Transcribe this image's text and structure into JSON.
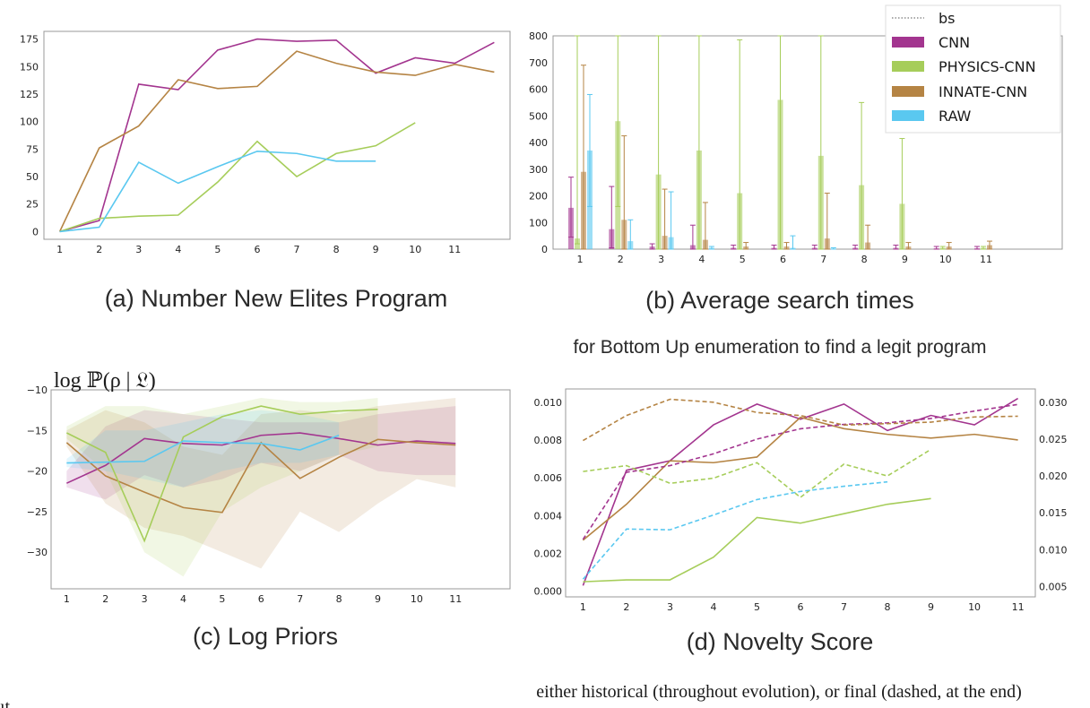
{
  "colors": {
    "CNN": "#a3358f",
    "PHYSICS-CNN": "#a6cd5a",
    "INNATE-CNN": "#b58444",
    "RAW": "#5ac8f0"
  },
  "captions": {
    "a": "(a) Number New Elites Program",
    "b": "(b) Average search times",
    "b_note": "for Bottom Up enumeration to find a legit program",
    "c": "(c) Log Priors",
    "c_ylabel": "log ℙ(ρ | 𝔏)",
    "d": "(d) Novelty Score",
    "d_note": "either historical (throughout evolution), or final (dashed, at the end)",
    "edge_fragment": "ıt"
  },
  "legend": [
    {
      "label": "bs",
      "style": "dotted"
    },
    {
      "label": "CNN",
      "style": "patch",
      "color": "#a3358f"
    },
    {
      "label": "PHYSICS-CNN",
      "style": "patch",
      "color": "#a6cd5a"
    },
    {
      "label": "INNATE-CNN",
      "style": "patch",
      "color": "#b58444"
    },
    {
      "label": "RAW",
      "style": "patch",
      "color": "#5ac8f0"
    }
  ],
  "chart_data": [
    {
      "id": "a",
      "type": "line",
      "title": "(a) Number New Elites Program",
      "x_ticks": [
        "1",
        "2",
        "3",
        "4",
        "5",
        "6",
        "7",
        "8",
        "9",
        "10",
        "11"
      ],
      "xlim": [
        0.6,
        12.4
      ],
      "y_ticks": [
        "0",
        "25",
        "50",
        "75",
        "100",
        "125",
        "150",
        "175"
      ],
      "ylim": [
        -7,
        182
      ],
      "series": [
        {
          "name": "CNN",
          "x": [
            1,
            2,
            3,
            4,
            5,
            6,
            7,
            8,
            9,
            10,
            11,
            12
          ],
          "values": [
            0,
            10,
            134,
            129,
            165,
            175,
            173,
            174,
            144,
            158,
            153,
            172
          ]
        },
        {
          "name": "INNATE-CNN",
          "x": [
            1,
            2,
            3,
            4,
            5,
            6,
            7,
            8,
            9,
            10,
            11,
            12
          ],
          "values": [
            0,
            76,
            96,
            138,
            130,
            132,
            164,
            153,
            145,
            142,
            152,
            145
          ]
        },
        {
          "name": "PHYSICS-CNN",
          "x": [
            1,
            2,
            3,
            4,
            5,
            6,
            7,
            8,
            9,
            10
          ],
          "values": [
            0,
            12,
            14,
            15,
            45,
            82,
            50,
            71,
            78,
            99
          ]
        },
        {
          "name": "RAW",
          "x": [
            1,
            2,
            3,
            4,
            5,
            6,
            7,
            8,
            9
          ],
          "values": [
            0,
            4,
            63,
            44,
            59,
            73,
            71,
            64,
            64
          ]
        }
      ]
    },
    {
      "id": "b",
      "type": "bar",
      "title": "(b) Average search times",
      "subtitle": "for Bottom Up enumeration to find a legit program",
      "categories": [
        "1",
        "2",
        "3",
        "4",
        "5",
        "6",
        "7",
        "8",
        "9",
        "10",
        "11"
      ],
      "y_ticks": [
        "0",
        "100",
        "200",
        "300",
        "400",
        "500",
        "600",
        "700",
        "800"
      ],
      "ylim": [
        0,
        800
      ],
      "series": [
        {
          "name": "CNN",
          "values": [
            155,
            75,
            10,
            15,
            5,
            5,
            5,
            5,
            5,
            3,
            3
          ],
          "err_hi": [
            270,
            235,
            20,
            90,
            15,
            15,
            15,
            15,
            15,
            10,
            10
          ],
          "err_lo": [
            45,
            5,
            0,
            0,
            0,
            0,
            0,
            0,
            0,
            0,
            0
          ]
        },
        {
          "name": "PHYSICS-CNN",
          "values": [
            40,
            480,
            280,
            370,
            210,
            560,
            350,
            240,
            170,
            5,
            5
          ],
          "err_hi": [
            800,
            800,
            800,
            800,
            785,
            800,
            800,
            550,
            415,
            10,
            10
          ],
          "err_lo": [
            20,
            160,
            0,
            0,
            0,
            0,
            0,
            0,
            0,
            0,
            0
          ]
        },
        {
          "name": "INNATE-CNN",
          "values": [
            290,
            110,
            50,
            35,
            10,
            10,
            40,
            25,
            10,
            10,
            15
          ],
          "err_hi": [
            690,
            425,
            225,
            175,
            25,
            25,
            210,
            90,
            25,
            25,
            30
          ],
          "err_lo": [
            0,
            0,
            0,
            0,
            0,
            0,
            0,
            0,
            0,
            0,
            0
          ]
        },
        {
          "name": "RAW",
          "values": [
            370,
            30,
            45,
            5,
            0,
            5,
            0,
            0,
            0,
            0,
            0
          ],
          "err_hi": [
            580,
            110,
            215,
            10,
            0,
            50,
            5,
            0,
            0,
            0,
            0
          ],
          "err_lo": [
            160,
            0,
            0,
            0,
            0,
            0,
            0,
            0,
            0,
            0,
            0
          ]
        }
      ]
    },
    {
      "id": "c",
      "type": "line",
      "title": "(c) Log Priors",
      "ylabel": "log ℙ(ρ | 𝔏)",
      "x_ticks": [
        "1",
        "2",
        "3",
        "4",
        "5",
        "6",
        "7",
        "8",
        "9",
        "10",
        "11"
      ],
      "xlim": [
        0.6,
        12.4
      ],
      "y_ticks": [
        "−30",
        "−25",
        "−20",
        "−15",
        "−10"
      ],
      "ylim": [
        -34.5,
        -10
      ],
      "series": [
        {
          "name": "CNN",
          "x": [
            1,
            2,
            3,
            4,
            5,
            6,
            7,
            8,
            9,
            10,
            11
          ],
          "values": [
            -21.5,
            -19.3,
            -16.0,
            -16.6,
            -16.8,
            -15.6,
            -15.3,
            -16.0,
            -16.8,
            -16.3,
            -16.6
          ],
          "lo": [
            -22,
            -23.5,
            -20.5,
            -22,
            -21,
            -19,
            -20,
            -18,
            -20,
            -20.5,
            -20.5
          ],
          "hi": [
            -20,
            -14.5,
            -12.5,
            -13,
            -13.5,
            -14,
            -14,
            -14,
            -13,
            -12.5,
            -12
          ]
        },
        {
          "name": "INNATE-CNN",
          "x": [
            1,
            2,
            3,
            4,
            5,
            6,
            7,
            8,
            9,
            10,
            11
          ],
          "values": [
            -16.5,
            -20.6,
            -22.6,
            -24.5,
            -25.1,
            -16.5,
            -20.9,
            -18.3,
            -16.1,
            -16.5,
            -16.8
          ],
          "lo": [
            -17,
            -24,
            -27,
            -28,
            -30,
            -32,
            -25,
            -27.5,
            -24,
            -21,
            -22
          ],
          "hi": [
            -15,
            -12.5,
            -14,
            -17,
            -18,
            -13,
            -12.5,
            -13,
            -12,
            -11.5,
            -11
          ]
        },
        {
          "name": "PHYSICS-CNN",
          "x": [
            1,
            2,
            3,
            4,
            5,
            6,
            7,
            8,
            9
          ],
          "values": [
            -15.3,
            -17.7,
            -28.6,
            -15.8,
            -13.3,
            -12.0,
            -13.0,
            -12.6,
            -12.4
          ],
          "lo": [
            -16,
            -20,
            -30,
            -33,
            -25,
            -22,
            -20,
            -18,
            -17
          ],
          "hi": [
            -14.5,
            -12,
            -12,
            -13,
            -12,
            -11,
            -11.5,
            -11.5,
            -11
          ]
        },
        {
          "name": "RAW",
          "x": [
            1,
            2,
            3,
            4,
            5,
            6,
            7,
            8
          ],
          "values": [
            -19.0,
            -18.9,
            -18.8,
            -16.3,
            -16.5,
            -16.6,
            -17.4,
            -15.6
          ],
          "lo": [
            -19.5,
            -20,
            -21,
            -22,
            -20,
            -19,
            -19,
            -18
          ],
          "hi": [
            -18.5,
            -15,
            -15,
            -14,
            -13,
            -12.5,
            -13,
            -14
          ]
        }
      ]
    },
    {
      "id": "d",
      "type": "line",
      "title": "(d) Novelty Score",
      "subtitle": "either historical (throughout evolution), or final (dashed, at the end)",
      "x_ticks": [
        "1",
        "2",
        "3",
        "4",
        "5",
        "6",
        "7",
        "8",
        "9",
        "10",
        "11"
      ],
      "xlim": [
        0.6,
        11.4
      ],
      "y_ticks": [
        "0.000",
        "0.002",
        "0.004",
        "0.006",
        "0.008",
        "0.010"
      ],
      "ylim": [
        -0.0003,
        0.0107
      ],
      "y2_ticks": [
        "0.005",
        "0.010",
        "0.015",
        "0.020",
        "0.025",
        "0.030"
      ],
      "y2lim": [
        0.0036,
        0.0318
      ],
      "series": [
        {
          "name": "CNN",
          "style": "solid",
          "axis": "left",
          "x": [
            1,
            2,
            3,
            4,
            5,
            6,
            7,
            8,
            9,
            10,
            11
          ],
          "values": [
            0.0003,
            0.0064,
            0.0069,
            0.0088,
            0.0099,
            0.0091,
            0.0099,
            0.0085,
            0.0093,
            0.0088,
            0.0102
          ]
        },
        {
          "name": "INNATE-CNN",
          "style": "solid",
          "axis": "left",
          "x": [
            1,
            2,
            3,
            4,
            5,
            6,
            7,
            8,
            9,
            10,
            11
          ],
          "values": [
            0.0027,
            0.0046,
            0.0069,
            0.0068,
            0.0071,
            0.0092,
            0.0086,
            0.0083,
            0.0081,
            0.0083,
            0.008
          ]
        },
        {
          "name": "PHYSICS-CNN",
          "style": "solid",
          "axis": "left",
          "x": [
            1,
            2,
            3,
            4,
            5,
            6,
            7,
            8,
            9
          ],
          "values": [
            0.0005,
            0.0006,
            0.0006,
            0.0018,
            0.0039,
            0.0036,
            0.0041,
            0.0046,
            0.0049
          ]
        },
        {
          "name": "CNN",
          "style": "dashed",
          "axis": "right",
          "x": [
            1,
            2,
            3,
            4,
            5,
            6,
            7,
            8,
            9,
            10,
            11
          ],
          "values": [
            0.0114,
            0.0205,
            0.0214,
            0.023,
            0.025,
            0.0264,
            0.027,
            0.0272,
            0.0278,
            0.0288,
            0.0297
          ]
        },
        {
          "name": "INNATE-CNN",
          "style": "dashed",
          "axis": "right",
          "x": [
            1,
            2,
            3,
            4,
            5,
            6,
            7,
            8,
            9,
            10,
            11
          ],
          "values": [
            0.0248,
            0.0282,
            0.0304,
            0.03,
            0.0286,
            0.0282,
            0.0269,
            0.0271,
            0.0273,
            0.028,
            0.0281
          ]
        },
        {
          "name": "PHYSICS-CNN",
          "style": "dashed",
          "axis": "right",
          "x": [
            1,
            2,
            3,
            4,
            5,
            6,
            7,
            8,
            9
          ],
          "values": [
            0.0206,
            0.0214,
            0.019,
            0.0197,
            0.0218,
            0.0171,
            0.0216,
            0.02,
            0.0236
          ]
        },
        {
          "name": "RAW",
          "style": "dashed",
          "axis": "right",
          "x": [
            1,
            2,
            3,
            4,
            5,
            6,
            7,
            8
          ],
          "values": [
            0.006,
            0.0128,
            0.0127,
            0.0147,
            0.0168,
            0.0179,
            0.0186,
            0.0192
          ]
        }
      ]
    }
  ]
}
